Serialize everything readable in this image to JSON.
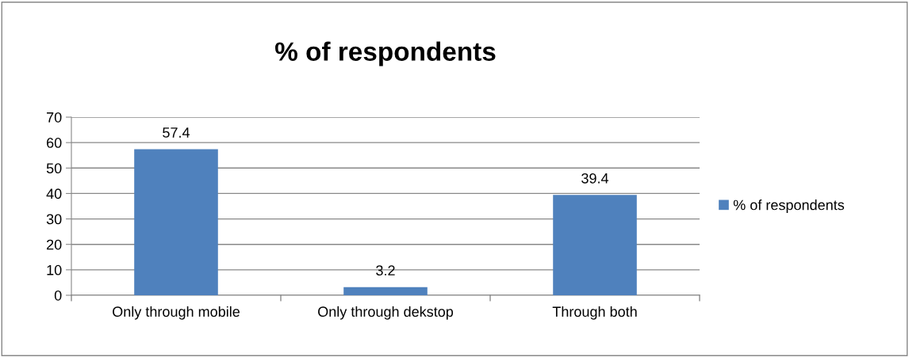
{
  "chart_data": {
    "type": "bar",
    "title": "% of respondents",
    "categories": [
      "Only through mobile",
      "Only through dekstop",
      "Through both"
    ],
    "series": [
      {
        "name": "% of respondents",
        "color": "#4f81bd",
        "values": [
          57.4,
          3.2,
          39.4
        ]
      }
    ],
    "ylim": [
      0,
      70
    ],
    "yticks": [
      0,
      10,
      20,
      30,
      40,
      50,
      60,
      70
    ],
    "grid": "y",
    "legend": "right",
    "data_labels": true
  }
}
